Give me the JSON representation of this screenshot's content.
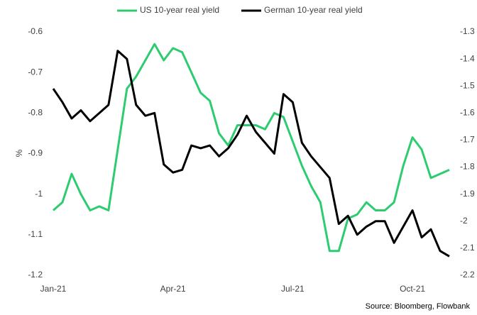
{
  "chart_data": {
    "type": "line",
    "categories": [
      "Jan-21",
      null,
      null,
      null,
      null,
      null,
      null,
      null,
      null,
      null,
      null,
      null,
      null,
      "Apr-21",
      null,
      null,
      null,
      null,
      null,
      null,
      null,
      null,
      null,
      null,
      null,
      null,
      "Jul-21",
      null,
      null,
      null,
      null,
      null,
      null,
      null,
      null,
      null,
      null,
      null,
      null,
      "Oct-21",
      null,
      null,
      null,
      null
    ],
    "series": [
      {
        "name": "US 10-year real yield",
        "color": "#2ecc71",
        "axis": "y",
        "values": [
          -1.04,
          -1.02,
          -0.95,
          -1.0,
          -1.04,
          -1.03,
          -1.04,
          -0.89,
          -0.74,
          -0.71,
          -0.67,
          -0.63,
          -0.67,
          -0.64,
          -0.65,
          -0.7,
          -0.75,
          -0.77,
          -0.85,
          -0.88,
          -0.83,
          -0.83,
          -0.83,
          -0.84,
          -0.8,
          -0.81,
          -0.87,
          -0.93,
          -0.98,
          -1.02,
          -1.14,
          -1.14,
          -1.06,
          -1.05,
          -1.02,
          -1.04,
          -1.04,
          -1.02,
          -0.93,
          -0.86,
          -0.89,
          -0.96,
          -0.95,
          -0.94
        ]
      },
      {
        "name": "German 10-year real yield",
        "color": "#000000",
        "axis": "y2",
        "values": [
          -1.51,
          -1.56,
          -1.62,
          -1.59,
          -1.63,
          -1.6,
          -1.57,
          -1.37,
          -1.4,
          -1.57,
          -1.61,
          -1.6,
          -1.79,
          -1.82,
          -1.81,
          -1.72,
          -1.73,
          -1.72,
          -1.76,
          -1.73,
          -1.68,
          -1.61,
          -1.67,
          -1.71,
          -1.75,
          -1.53,
          -1.56,
          -1.71,
          -1.76,
          -1.8,
          -1.84,
          -2.01,
          -1.98,
          -2.05,
          -2.02,
          -2.0,
          -2.0,
          -2.08,
          -2.02,
          -1.96,
          -2.06,
          -2.03,
          -2.11,
          -2.13
        ]
      }
    ],
    "y_label": "%",
    "ylim": [
      -1.2,
      -0.6
    ],
    "yticks": [
      -0.6,
      -0.7,
      -0.8,
      -0.9,
      -1,
      -1.1,
      -1.2
    ],
    "y2lim": [
      -2.2,
      -1.3
    ],
    "y2ticks": [
      -1.3,
      -1.4,
      -1.5,
      -1.6,
      -1.7,
      -1.8,
      -1.9,
      -2,
      -2.1,
      -2.2
    ],
    "grid": false,
    "source": "Source: Bloomberg, Flowbank"
  }
}
